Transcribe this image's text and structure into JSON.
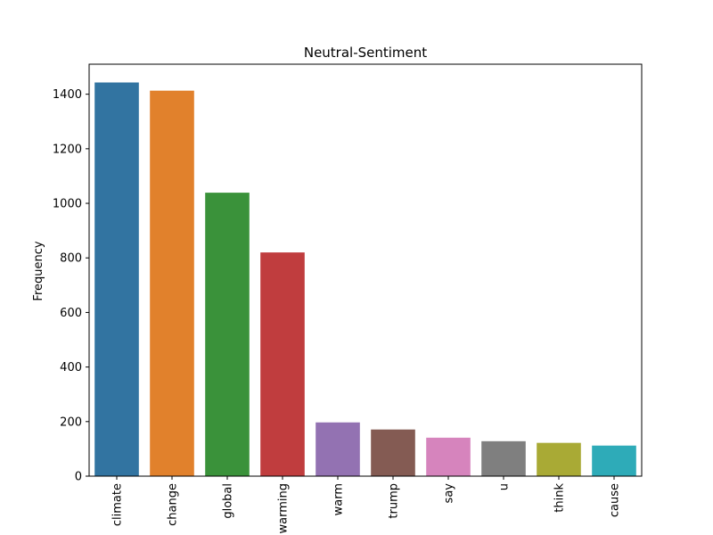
{
  "chart_data": {
    "type": "bar",
    "title": "Neutral-Sentiment",
    "xlabel": "",
    "ylabel": "Frequency",
    "ylim": [
      0,
      1510
    ],
    "yticks": [
      0,
      200,
      400,
      600,
      800,
      1000,
      1200,
      1400
    ],
    "categories": [
      "climate",
      "change",
      "global",
      "warming",
      "warm",
      "trump",
      "say",
      "u",
      "think",
      "cause"
    ],
    "values": [
      1443,
      1413,
      1039,
      820,
      197,
      171,
      141,
      128,
      122,
      112
    ],
    "colors": [
      "#3274a1",
      "#e1812c",
      "#3a923a",
      "#c03d3e",
      "#9372b2",
      "#845b53",
      "#d684bd",
      "#7f7f7f",
      "#a9aa35",
      "#2eabb8"
    ],
    "grid": false,
    "legend": "none"
  }
}
